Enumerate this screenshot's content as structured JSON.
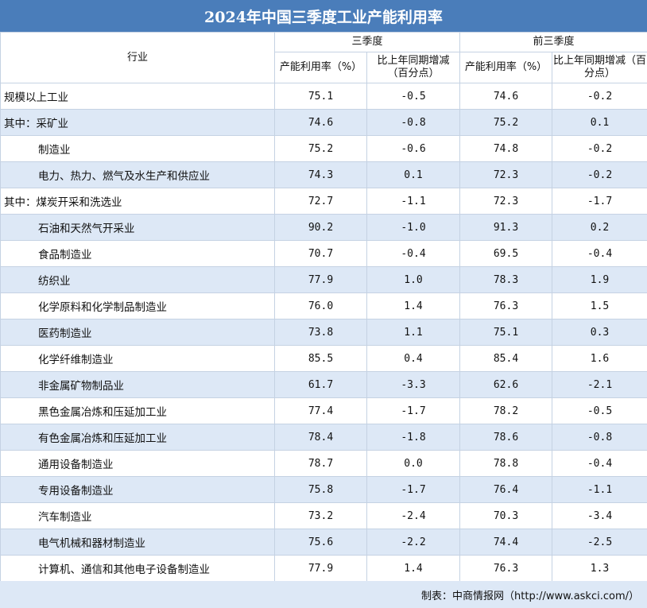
{
  "chart_data": {
    "type": "table",
    "title": "2024年中国三季度工业产能利用率",
    "header": {
      "industry": "行业",
      "group_q3": "三季度",
      "group_ytd": "前三季度",
      "rate": "产能利用率（%）",
      "change": "比上年同期增减（百分点）"
    },
    "rows": [
      {
        "name": "规模以上工业",
        "indent": false,
        "q3_rate": "75.1",
        "q3_change": "-0.5",
        "ytd_rate": "74.6",
        "ytd_change": "-0.2"
      },
      {
        "name": "其中：采矿业",
        "indent": false,
        "q3_rate": "74.6",
        "q3_change": "-0.8",
        "ytd_rate": "75.2",
        "ytd_change": "0.1"
      },
      {
        "name": "制造业",
        "indent": true,
        "q3_rate": "75.2",
        "q3_change": "-0.6",
        "ytd_rate": "74.8",
        "ytd_change": "-0.2"
      },
      {
        "name": "电力、热力、燃气及水生产和供应业",
        "indent": true,
        "q3_rate": "74.3",
        "q3_change": "0.1",
        "ytd_rate": "72.3",
        "ytd_change": "-0.2"
      },
      {
        "name": "其中：煤炭开采和洗选业",
        "indent": false,
        "q3_rate": "72.7",
        "q3_change": "-1.1",
        "ytd_rate": "72.3",
        "ytd_change": "-1.7"
      },
      {
        "name": "石油和天然气开采业",
        "indent": true,
        "q3_rate": "90.2",
        "q3_change": "-1.0",
        "ytd_rate": "91.3",
        "ytd_change": "0.2"
      },
      {
        "name": "食品制造业",
        "indent": true,
        "q3_rate": "70.7",
        "q3_change": "-0.4",
        "ytd_rate": "69.5",
        "ytd_change": "-0.4"
      },
      {
        "name": "纺织业",
        "indent": true,
        "q3_rate": "77.9",
        "q3_change": "1.0",
        "ytd_rate": "78.3",
        "ytd_change": "1.9"
      },
      {
        "name": "化学原料和化学制品制造业",
        "indent": true,
        "q3_rate": "76.0",
        "q3_change": "1.4",
        "ytd_rate": "76.3",
        "ytd_change": "1.5"
      },
      {
        "name": "医药制造业",
        "indent": true,
        "q3_rate": "73.8",
        "q3_change": "1.1",
        "ytd_rate": "75.1",
        "ytd_change": "0.3"
      },
      {
        "name": "化学纤维制造业",
        "indent": true,
        "q3_rate": "85.5",
        "q3_change": "0.4",
        "ytd_rate": "85.4",
        "ytd_change": "1.6"
      },
      {
        "name": "非金属矿物制品业",
        "indent": true,
        "q3_rate": "61.7",
        "q3_change": "-3.3",
        "ytd_rate": "62.6",
        "ytd_change": "-2.1"
      },
      {
        "name": "黑色金属冶炼和压延加工业",
        "indent": true,
        "q3_rate": "77.4",
        "q3_change": "-1.7",
        "ytd_rate": "78.2",
        "ytd_change": "-0.5"
      },
      {
        "name": "有色金属冶炼和压延加工业",
        "indent": true,
        "q3_rate": "78.4",
        "q3_change": "-1.8",
        "ytd_rate": "78.6",
        "ytd_change": "-0.8"
      },
      {
        "name": "通用设备制造业",
        "indent": true,
        "q3_rate": "78.7",
        "q3_change": "0.0",
        "ytd_rate": "78.8",
        "ytd_change": "-0.4"
      },
      {
        "name": "专用设备制造业",
        "indent": true,
        "q3_rate": "75.8",
        "q3_change": "-1.7",
        "ytd_rate": "76.4",
        "ytd_change": "-1.1"
      },
      {
        "name": "汽车制造业",
        "indent": true,
        "q3_rate": "73.2",
        "q3_change": "-2.4",
        "ytd_rate": "70.3",
        "ytd_change": "-3.4"
      },
      {
        "name": "电气机械和器材制造业",
        "indent": true,
        "q3_rate": "75.6",
        "q3_change": "-2.2",
        "ytd_rate": "74.4",
        "ytd_change": "-2.5"
      },
      {
        "name": "计算机、通信和其他电子设备制造业",
        "indent": true,
        "q3_rate": "77.9",
        "q3_change": "1.4",
        "ytd_rate": "76.3",
        "ytd_change": "1.3"
      }
    ],
    "source": "制表：中商情报网（http://www.askci.com/）"
  },
  "colors": {
    "title_bg": "#4a7dba",
    "stripe": "#dde8f6",
    "border": "#c5d2e3"
  }
}
